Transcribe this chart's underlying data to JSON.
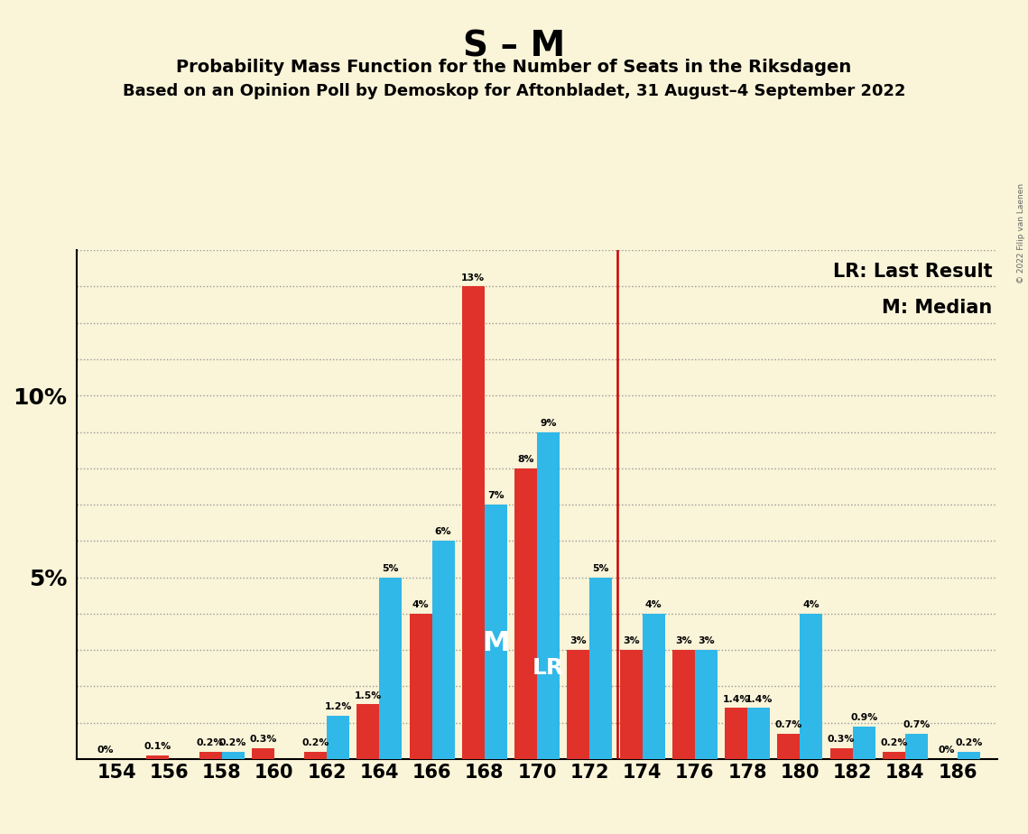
{
  "title": "S – M",
  "subtitle1": "Probability Mass Function for the Number of Seats in the Riksdagen",
  "subtitle2": "Based on an Opinion Poll by Demoskop for Aftonbladet, 31 August–4 September 2022",
  "copyright": "© 2022 Filip van Laenen",
  "legend_lr": "LR: Last Result",
  "legend_m": "M: Median",
  "seats": [
    154,
    156,
    158,
    160,
    162,
    164,
    166,
    168,
    170,
    172,
    174,
    176,
    178,
    180,
    182,
    184,
    186
  ],
  "red_values": [
    0.0,
    0.1,
    0.2,
    0.3,
    0.2,
    1.5,
    4.0,
    13.0,
    8.0,
    3.0,
    3.0,
    3.0,
    1.4,
    0.7,
    0.3,
    0.2,
    0.0
  ],
  "blue_values": [
    0.0,
    0.0,
    0.2,
    0.0,
    1.2,
    5.0,
    6.0,
    7.0,
    9.0,
    5.0,
    4.0,
    3.0,
    1.4,
    4.0,
    0.9,
    0.7,
    0.2
  ],
  "red_labels": [
    "0%",
    "0.1%",
    "0.2%",
    "0.3%",
    "0.2%",
    "1.5%",
    "4%",
    "13%",
    "8%",
    "3%",
    "3%",
    "3%",
    "1.4%",
    "0.7%",
    "0.3%",
    "0.2%",
    "0%"
  ],
  "blue_labels": [
    "",
    "",
    "0.2%",
    "",
    "1.2%",
    "5%",
    "6%",
    "7%",
    "9%",
    "5%",
    "4%",
    "3%",
    "1.4%",
    "4%",
    "0.9%",
    "0.7%",
    "0.2%"
  ],
  "red_color": "#e0322a",
  "blue_color": "#30b8e8",
  "background_color": "#faf4d8",
  "lr_seat": 174,
  "median_seat": 168,
  "ylim_max": 14.0,
  "bar_width": 0.43
}
